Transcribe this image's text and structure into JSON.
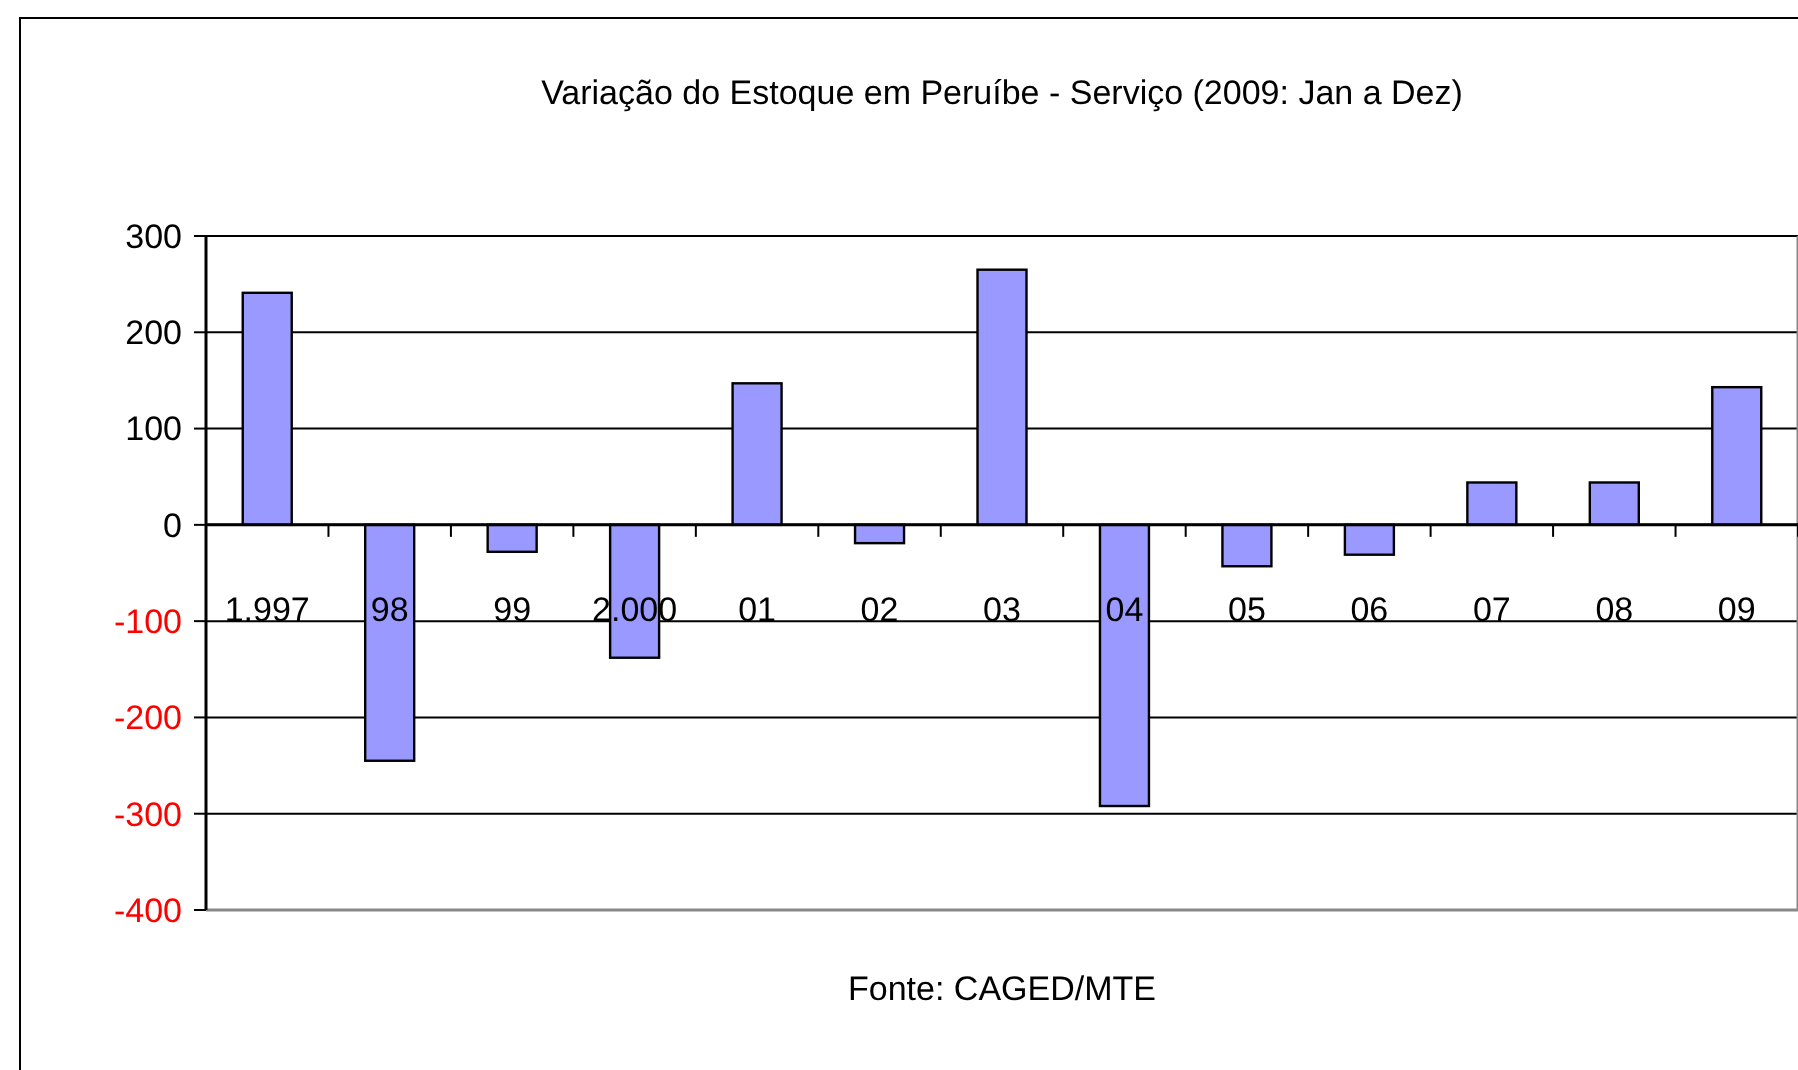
{
  "chart_data": {
    "type": "bar",
    "title": "Variação do Estoque em Peruíbe  - Serviço (2009:  Jan a Dez)",
    "categories": [
      "1.997",
      "98",
      "99",
      "2.000",
      "01",
      "02",
      "03",
      "04",
      "05",
      "06",
      "07",
      "08",
      "09"
    ],
    "series": [
      {
        "color": "#9999ff",
        "values": [
          241,
          -245,
          -28,
          -138,
          147,
          -19,
          265,
          -292,
          -43,
          -31,
          44,
          44,
          143
        ]
      }
    ],
    "ylim": [
      -400,
      300
    ],
    "yticks": [
      -400,
      -300,
      -200,
      -100,
      0,
      100,
      200,
      300
    ],
    "grid": "y",
    "annotations": [
      "Fonte: CAGED/MTE"
    ]
  }
}
